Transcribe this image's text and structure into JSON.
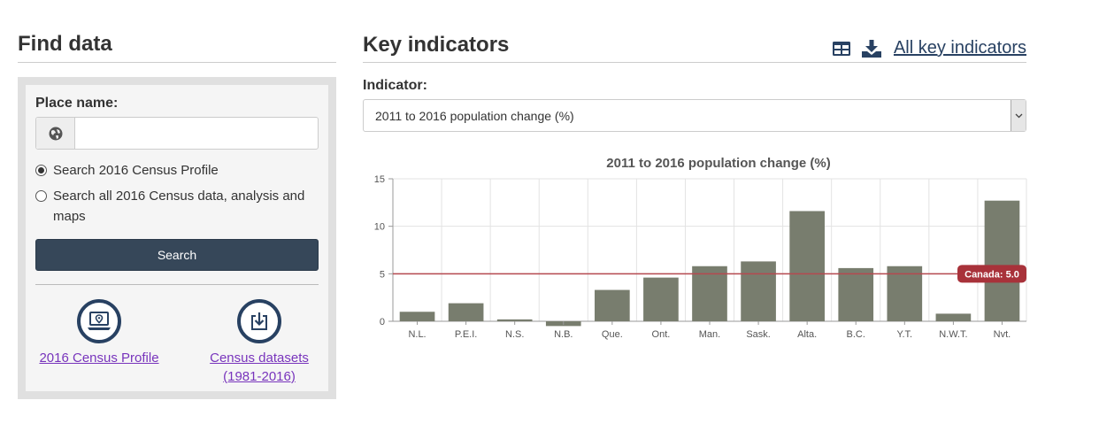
{
  "find_data": {
    "title": "Find data",
    "place_label": "Place name:",
    "place_input_value": "",
    "place_input_placeholder": "",
    "radio_census_profile": "Search 2016 Census Profile",
    "radio_all_data": "Search all 2016 Census data, analysis and maps",
    "search_button": "Search",
    "link_profile": "2016 Census Profile",
    "link_datasets_line1": "Census datasets",
    "link_datasets_line2": "(1981-2016)"
  },
  "key_indicators": {
    "title": "Key indicators",
    "all_link": "All key indicators",
    "indicator_label": "Indicator:",
    "selected_indicator": "2011 to 2016 population change (%)"
  },
  "colors": {
    "bar": "#787d6e",
    "reference_line": "#b5494f",
    "reference_badge": "#a8323a",
    "link_visited": "#7834bc",
    "button": "#364759"
  },
  "chart_data": {
    "type": "bar",
    "title": "2011 to 2016 population change (%)",
    "categories": [
      "N.L.",
      "P.E.I.",
      "N.S.",
      "N.B.",
      "Que.",
      "Ont.",
      "Man.",
      "Sask.",
      "Alta.",
      "B.C.",
      "Y.T.",
      "N.W.T.",
      "Nvt."
    ],
    "values": [
      1.0,
      1.9,
      0.2,
      -0.5,
      3.3,
      4.6,
      5.8,
      6.3,
      11.6,
      5.6,
      5.8,
      0.8,
      12.7
    ],
    "ylim": [
      0,
      15
    ],
    "yticks": [
      0,
      5,
      10,
      15
    ],
    "xlabel": "",
    "ylabel": "",
    "reference": {
      "label": "Canada: 5.0",
      "value": 5.0
    }
  }
}
